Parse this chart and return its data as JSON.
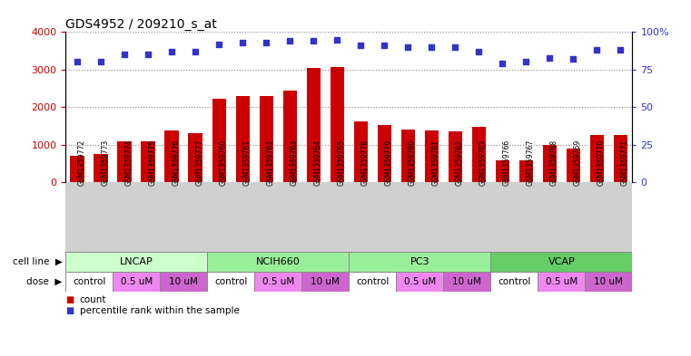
{
  "title": "GDS4952 / 209210_s_at",
  "samples": [
    "GSM1359772",
    "GSM1359773",
    "GSM1359774",
    "GSM1359775",
    "GSM1359776",
    "GSM1359777",
    "GSM1359760",
    "GSM1359761",
    "GSM1359762",
    "GSM1359763",
    "GSM1359764",
    "GSM1359765",
    "GSM1359778",
    "GSM1359779",
    "GSM1359780",
    "GSM1359781",
    "GSM1359782",
    "GSM1359783",
    "GSM1359766",
    "GSM1359767",
    "GSM1359768",
    "GSM1359769",
    "GSM1359770",
    "GSM1359771"
  ],
  "counts": [
    700,
    750,
    1080,
    1090,
    1370,
    1300,
    2230,
    2300,
    2300,
    2450,
    3050,
    3060,
    1620,
    1520,
    1390,
    1380,
    1350,
    1460,
    580,
    580,
    980,
    900,
    1250,
    1260
  ],
  "percentile_ranks": [
    80,
    80,
    85,
    85,
    87,
    87,
    92,
    93,
    93,
    94,
    94,
    95,
    91,
    91,
    90,
    90,
    90,
    87,
    79,
    80,
    83,
    82,
    88,
    88
  ],
  "bar_color": "#cc0000",
  "dot_color": "#3333cc",
  "cell_lines": [
    {
      "name": "LNCAP",
      "start": 0,
      "end": 6,
      "color": "#ccffcc"
    },
    {
      "name": "NCIH660",
      "start": 6,
      "end": 12,
      "color": "#99ee99"
    },
    {
      "name": "PC3",
      "start": 12,
      "end": 18,
      "color": "#99ee99"
    },
    {
      "name": "VCAP",
      "start": 18,
      "end": 24,
      "color": "#66cc66"
    }
  ],
  "doses": [
    {
      "label": "control",
      "start": 0,
      "end": 2,
      "color": "#ffffff"
    },
    {
      "label": "0.5 uM",
      "start": 2,
      "end": 4,
      "color": "#ee88ee"
    },
    {
      "label": "10 uM",
      "start": 4,
      "end": 6,
      "color": "#cc66cc"
    },
    {
      "label": "control",
      "start": 6,
      "end": 8,
      "color": "#ffffff"
    },
    {
      "label": "0.5 uM",
      "start": 8,
      "end": 10,
      "color": "#ee88ee"
    },
    {
      "label": "10 uM",
      "start": 10,
      "end": 12,
      "color": "#cc66cc"
    },
    {
      "label": "control",
      "start": 12,
      "end": 14,
      "color": "#ffffff"
    },
    {
      "label": "0.5 uM",
      "start": 14,
      "end": 16,
      "color": "#ee88ee"
    },
    {
      "label": "10 uM",
      "start": 16,
      "end": 18,
      "color": "#cc66cc"
    },
    {
      "label": "control",
      "start": 18,
      "end": 20,
      "color": "#ffffff"
    },
    {
      "label": "0.5 uM",
      "start": 20,
      "end": 22,
      "color": "#ee88ee"
    },
    {
      "label": "10 uM",
      "start": 22,
      "end": 24,
      "color": "#cc66cc"
    }
  ],
  "ylim_left": [
    0,
    4000
  ],
  "ylim_right": [
    0,
    100
  ],
  "yticks_left": [
    0,
    1000,
    2000,
    3000,
    4000
  ],
  "yticks_right": [
    0,
    25,
    50,
    75,
    100
  ],
  "ytick_labels_right": [
    "0",
    "25",
    "50",
    "75",
    "100%"
  ],
  "ylabel_left_color": "#cc0000",
  "ylabel_right_color": "#3333cc",
  "grid_color": "#888888",
  "xtick_bg_color": "#d0d0d0",
  "legend_count_color": "#cc0000",
  "legend_dot_color": "#3333cc"
}
